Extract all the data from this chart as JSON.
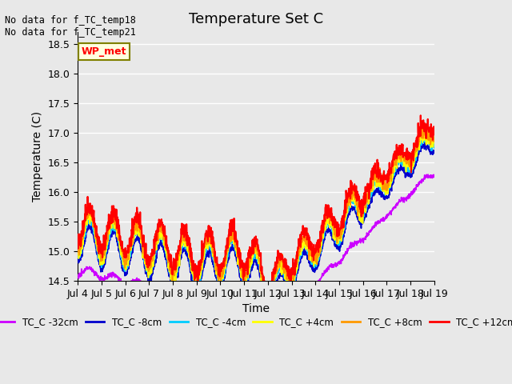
{
  "title": "Temperature Set C",
  "xlabel": "Time",
  "ylabel": "Temperature (C)",
  "ylim": [
    14.5,
    18.7
  ],
  "annotation_text": "No data for f_TC_temp18\nNo data for f_TC_temp21",
  "wp_met_label": "WP_met",
  "legend_labels": [
    "TC_C -32cm",
    "TC_C -8cm",
    "TC_C -4cm",
    "TC_C +4cm",
    "TC_C +8cm",
    "TC_C +12cm"
  ],
  "line_colors": [
    "#cc00ff",
    "#0000cc",
    "#00ccff",
    "#ffff00",
    "#ff9900",
    "#ff0000"
  ],
  "line_widths": [
    1.2,
    1.2,
    1.2,
    1.2,
    1.2,
    1.5
  ],
  "background_color": "#e8e8e8",
  "plot_bg_color": "#e8e8e8",
  "grid_color": "#ffffff",
  "x_start": 4.0,
  "x_end": 19.0,
  "x_ticks": [
    4,
    5,
    6,
    7,
    8,
    9,
    10,
    11,
    12,
    13,
    14,
    15,
    16,
    17,
    18,
    19
  ],
  "x_tick_labels": [
    "Jul 4",
    "Jul 5",
    "Jul 6",
    "Jul 7",
    "Jul 8",
    "Jul 9",
    "Jul 10",
    "Jul 11",
    "Jul 12",
    "Jul 13",
    "Jul 14",
    "Jul 15",
    "Jul 16",
    "Jul 17",
    "Jul 18",
    "Jul 19"
  ],
  "title_fontsize": 13,
  "label_fontsize": 10,
  "tick_fontsize": 9
}
